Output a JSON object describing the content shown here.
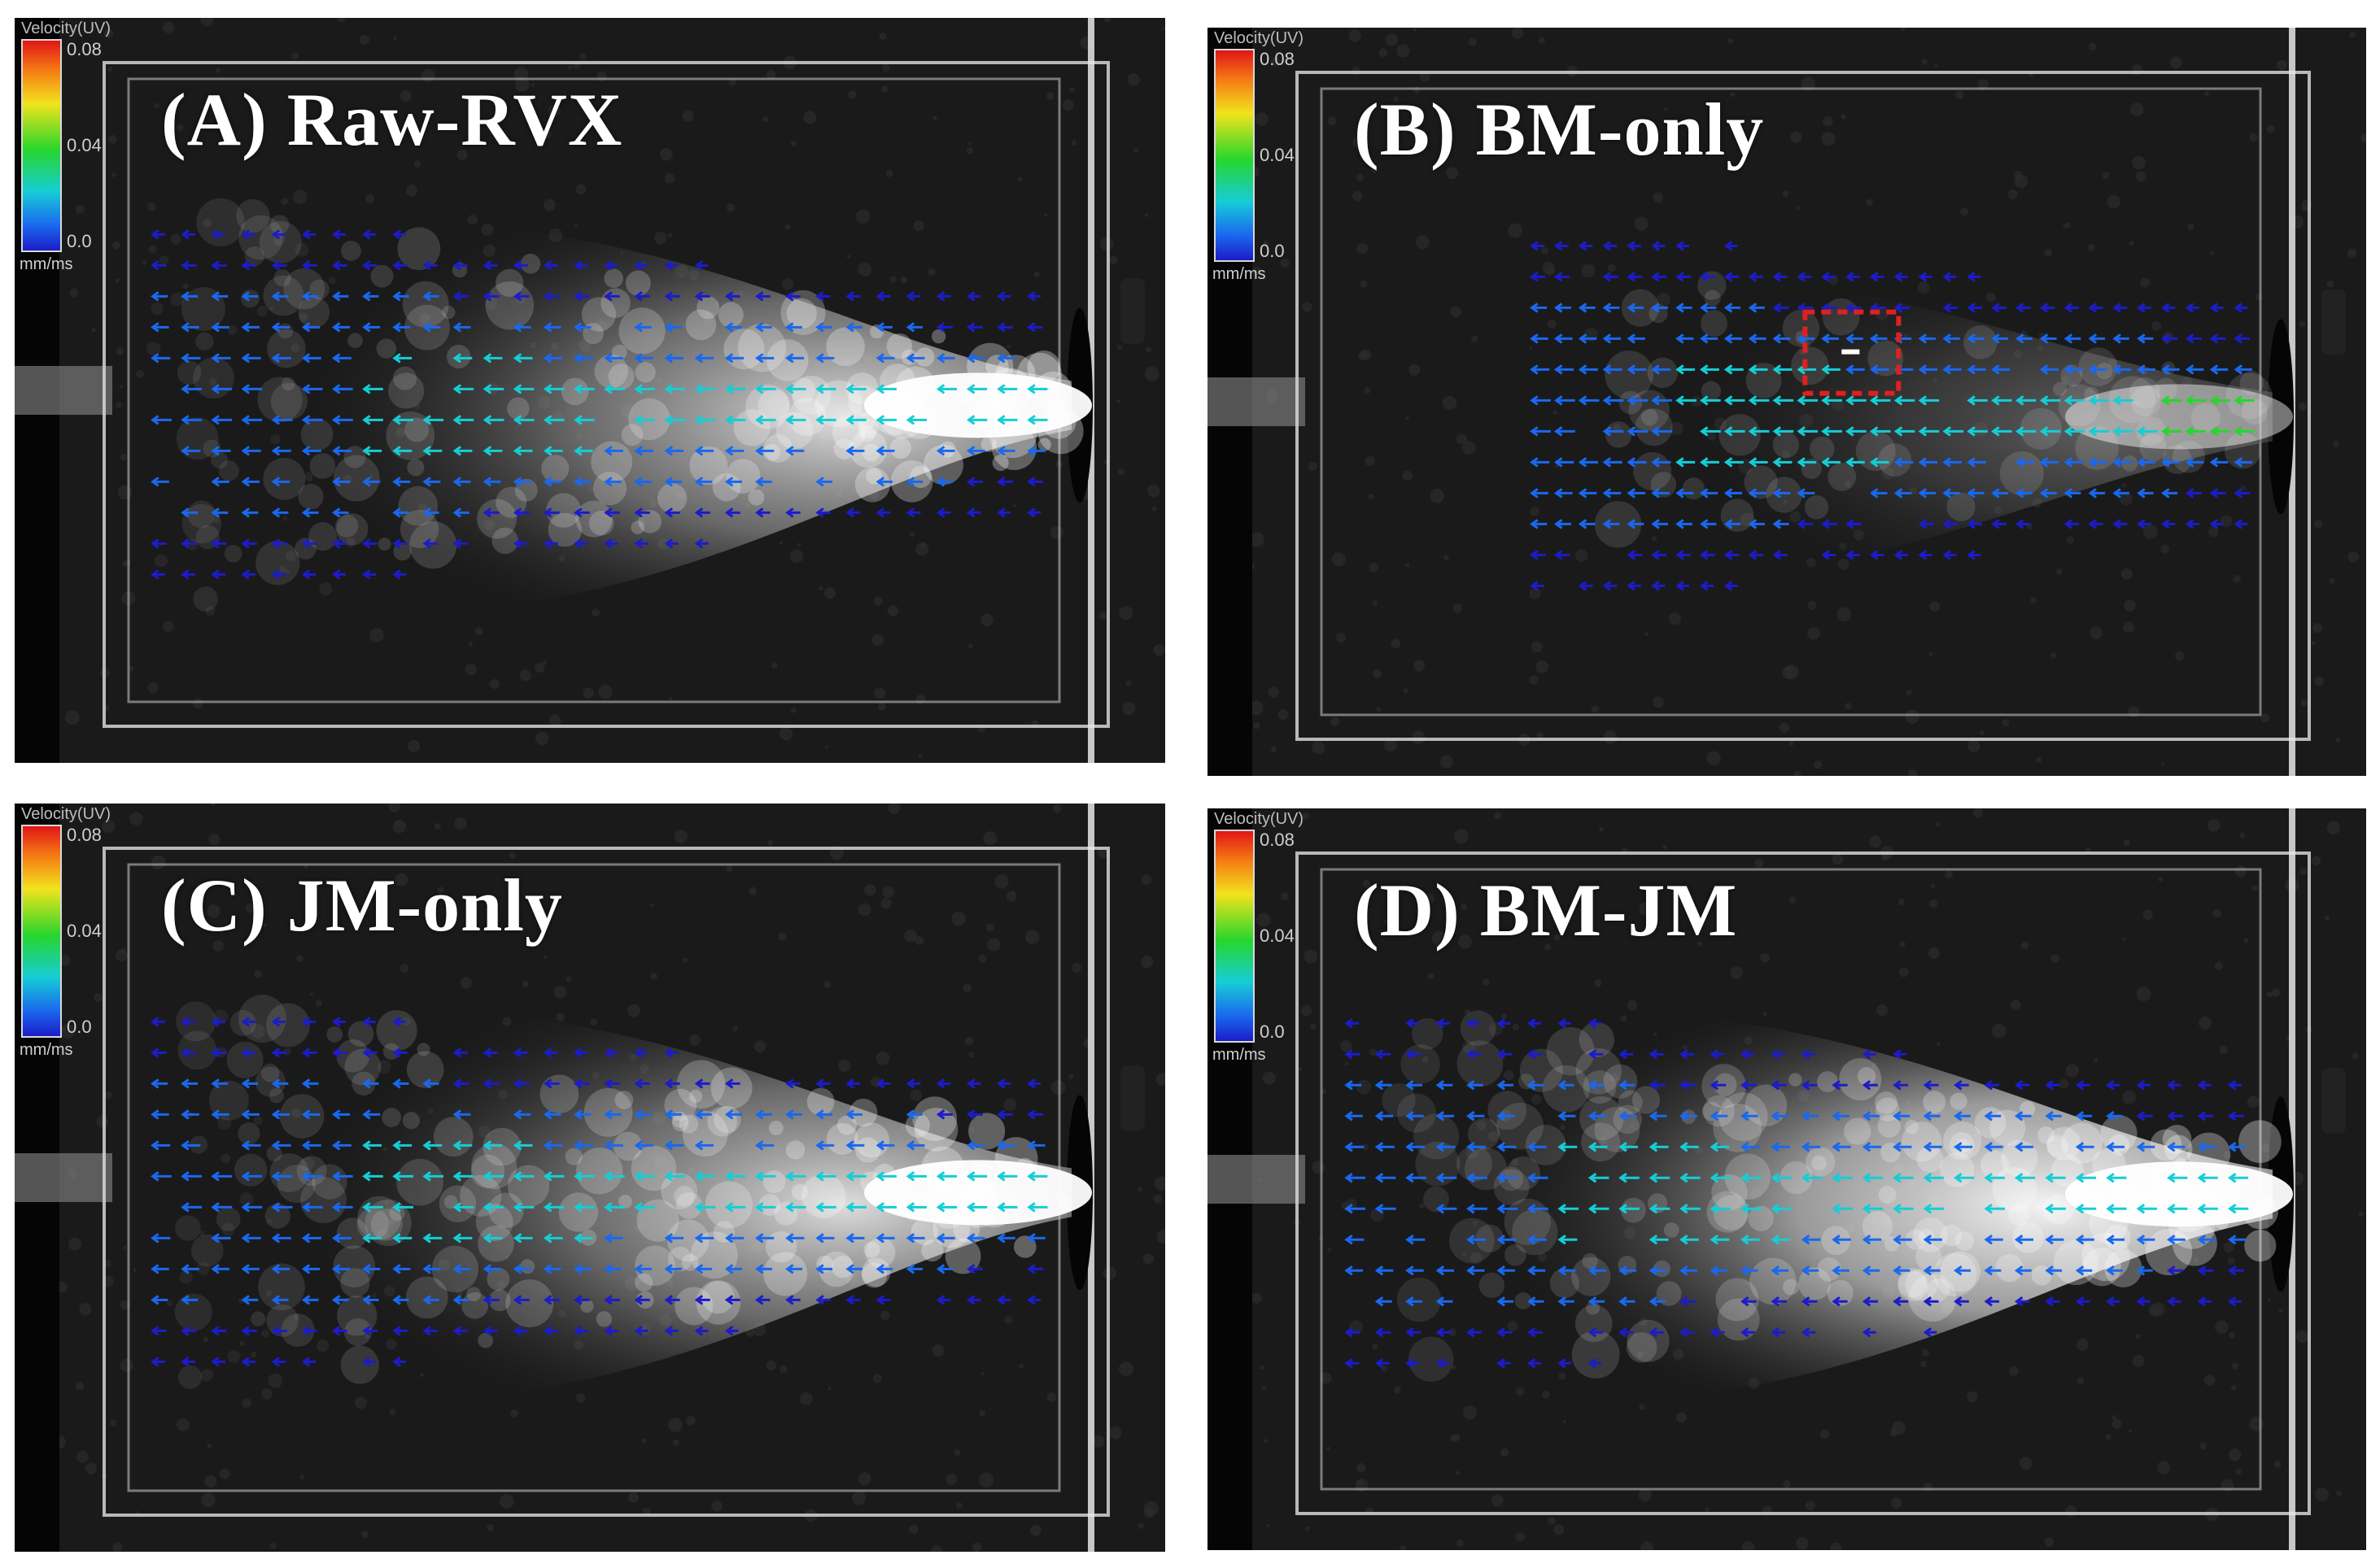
{
  "panels": [
    {
      "id": "A",
      "title": "(A) Raw-RVX",
      "plume": "wide"
    },
    {
      "id": "B",
      "title": "(B) BM-only",
      "plume": "faint"
    },
    {
      "id": "C",
      "title": "(C) JM-only",
      "plume": "wide"
    },
    {
      "id": "D",
      "title": "(D) BM-JM",
      "plume": "bright"
    }
  ],
  "colorbar": {
    "title": "Velocity(UV)",
    "ticks": [
      "0.08",
      "0.04",
      "0.0"
    ],
    "unit": "mm/ms",
    "colors": [
      "#e01616",
      "#f57b14",
      "#f2e31c",
      "#27d62c",
      "#16cdd6",
      "#1a68ee",
      "#1c1cc8"
    ]
  },
  "highlight_box_color": "#e02020"
}
